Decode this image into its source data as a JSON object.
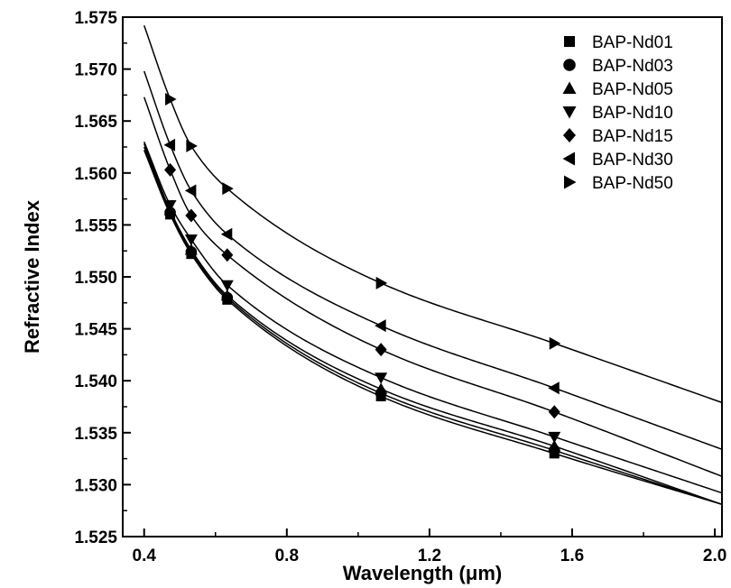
{
  "chart_data": {
    "type": "scatter",
    "title": "",
    "xlabel": "Wavelength (μm)",
    "ylabel": "Refractive Index",
    "xlim": [
      0.34,
      2.02
    ],
    "ylim": [
      1.525,
      1.575
    ],
    "x_ticks": [
      "0.4",
      "0.8",
      "1.2",
      "1.6",
      "2.0"
    ],
    "y_ticks": [
      "1.525",
      "1.530",
      "1.535",
      "1.540",
      "1.545",
      "1.550",
      "1.555",
      "1.560",
      "1.565",
      "1.570",
      "1.575"
    ],
    "legend_position": "top-right",
    "fit_lines": true,
    "x": [
      0.473,
      0.532,
      0.633,
      1.064,
      1.55
    ],
    "series": [
      {
        "name": "BAP-Nd01",
        "marker": "square",
        "values": [
          1.556,
          1.5522,
          1.5478,
          1.5385,
          1.533
        ],
        "fit_end": [
          0.4,
          1.5622,
          2.02,
          1.5281
        ]
      },
      {
        "name": "BAP-Nd03",
        "marker": "circle",
        "values": [
          1.5562,
          1.5524,
          1.548,
          1.5388,
          1.5333
        ],
        "fit_end": [
          0.4,
          1.5625,
          2.02,
          1.5281
        ]
      },
      {
        "name": "BAP-Nd05",
        "marker": "triangle-up",
        "values": [
          1.5564,
          1.5526,
          1.5482,
          1.5392,
          1.5337
        ],
        "fit_end": [
          0.4,
          1.5628,
          2.02,
          1.5281
        ]
      },
      {
        "name": "BAP-Nd10",
        "marker": "triangle-down",
        "values": [
          1.5569,
          1.5536,
          1.5492,
          1.5403,
          1.5346
        ],
        "fit_end": [
          0.4,
          1.563,
          2.02,
          1.5292
        ]
      },
      {
        "name": "BAP-Nd15",
        "marker": "diamond",
        "values": [
          1.5603,
          1.5559,
          1.5521,
          1.543,
          1.537
        ],
        "fit_end": [
          0.4,
          1.5673,
          2.02,
          1.5308
        ]
      },
      {
        "name": "BAP-Nd30",
        "marker": "triangle-left",
        "values": [
          1.5627,
          1.5583,
          1.5541,
          1.5453,
          1.5393
        ],
        "fit_end": [
          0.4,
          1.5698,
          2.02,
          1.5334
        ]
      },
      {
        "name": "BAP-Nd50",
        "marker": "triangle-right",
        "values": [
          1.5671,
          1.5626,
          1.5585,
          1.5494,
          1.5436
        ],
        "fit_end": [
          0.4,
          1.5742,
          2.02,
          1.5379
        ]
      }
    ]
  }
}
